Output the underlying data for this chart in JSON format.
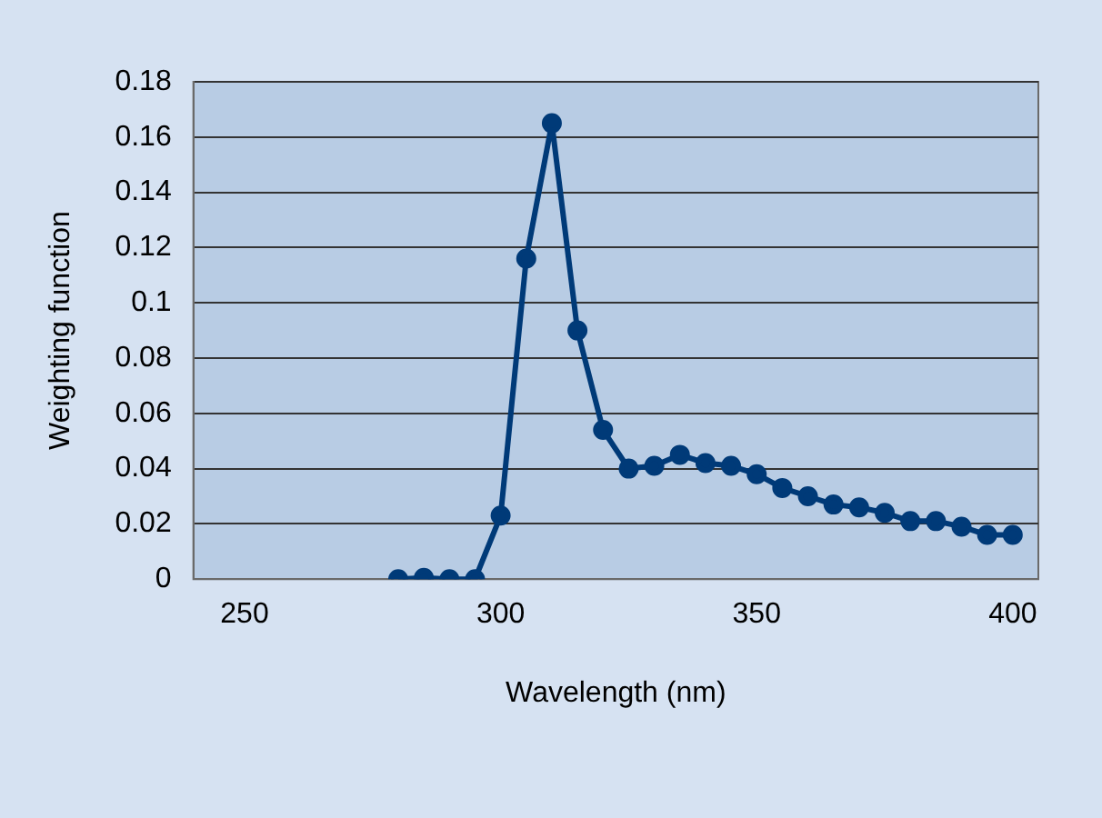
{
  "chart_data": {
    "type": "line",
    "xlabel": "Wavelength (nm)",
    "ylabel": "Weighting function",
    "x": [
      280,
      285,
      290,
      295,
      300,
      305,
      310,
      315,
      320,
      325,
      330,
      335,
      340,
      345,
      350,
      355,
      360,
      365,
      370,
      375,
      380,
      385,
      390,
      395,
      400
    ],
    "series": [
      {
        "color": "#003a78",
        "values": [
          0,
          0.0005,
          0,
          0,
          0.023,
          0.116,
          0.165,
          0.09,
          0.054,
          0.04,
          0.041,
          0.045,
          0.042,
          0.041,
          0.038,
          0.033,
          0.03,
          0.027,
          0.026,
          0.024,
          0.021,
          0.021,
          0.019,
          0.016,
          0.016
        ]
      }
    ],
    "xlim": [
      240,
      405
    ],
    "xticks": [
      250,
      300,
      350,
      400
    ],
    "ylim": [
      0,
      0.18
    ],
    "yticks": [
      0,
      0.02,
      0.04,
      0.06,
      0.08,
      0.1,
      0.12,
      0.14,
      0.16,
      0.18
    ],
    "grid": "y",
    "legend": false,
    "marker": "circle",
    "line_style": "solid"
  }
}
